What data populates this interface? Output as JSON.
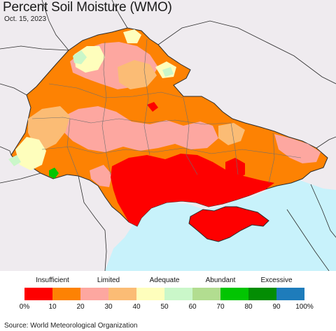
{
  "title": "Percent Soil Moisture (WMO)",
  "date": "Oct. 15, 2023",
  "source": "Source: World Meteorological Organization",
  "colors": {
    "land_background": "#efebef",
    "sea": "#c8f2fb",
    "border": "#6e6e6e",
    "country_border": "#2b2b2b"
  },
  "legend": {
    "categories": [
      {
        "label": "Insufficient",
        "at": 0.1
      },
      {
        "label": "Limited",
        "at": 0.3
      },
      {
        "label": "Adequate",
        "at": 0.5
      },
      {
        "label": "Abundant",
        "at": 0.7
      },
      {
        "label": "Excessive",
        "at": 0.9
      }
    ],
    "ticks": [
      "0%",
      "10",
      "20",
      "30",
      "40",
      "50",
      "60",
      "70",
      "80",
      "90",
      "100%"
    ],
    "bins": [
      {
        "range": "0-10",
        "color": "#fe0000"
      },
      {
        "range": "10-20",
        "color": "#fd8203"
      },
      {
        "range": "20-30",
        "color": "#fda7a0"
      },
      {
        "range": "30-40",
        "color": "#fbbc75"
      },
      {
        "range": "40-50",
        "color": "#fefebc"
      },
      {
        "range": "50-60",
        "color": "#caf7c9"
      },
      {
        "range": "60-70",
        "color": "#b2dd90"
      },
      {
        "range": "70-80",
        "color": "#02c502"
      },
      {
        "range": "80-90",
        "color": "#038d03"
      },
      {
        "range": "90-100",
        "color": "#1e7cbb"
      }
    ]
  }
}
